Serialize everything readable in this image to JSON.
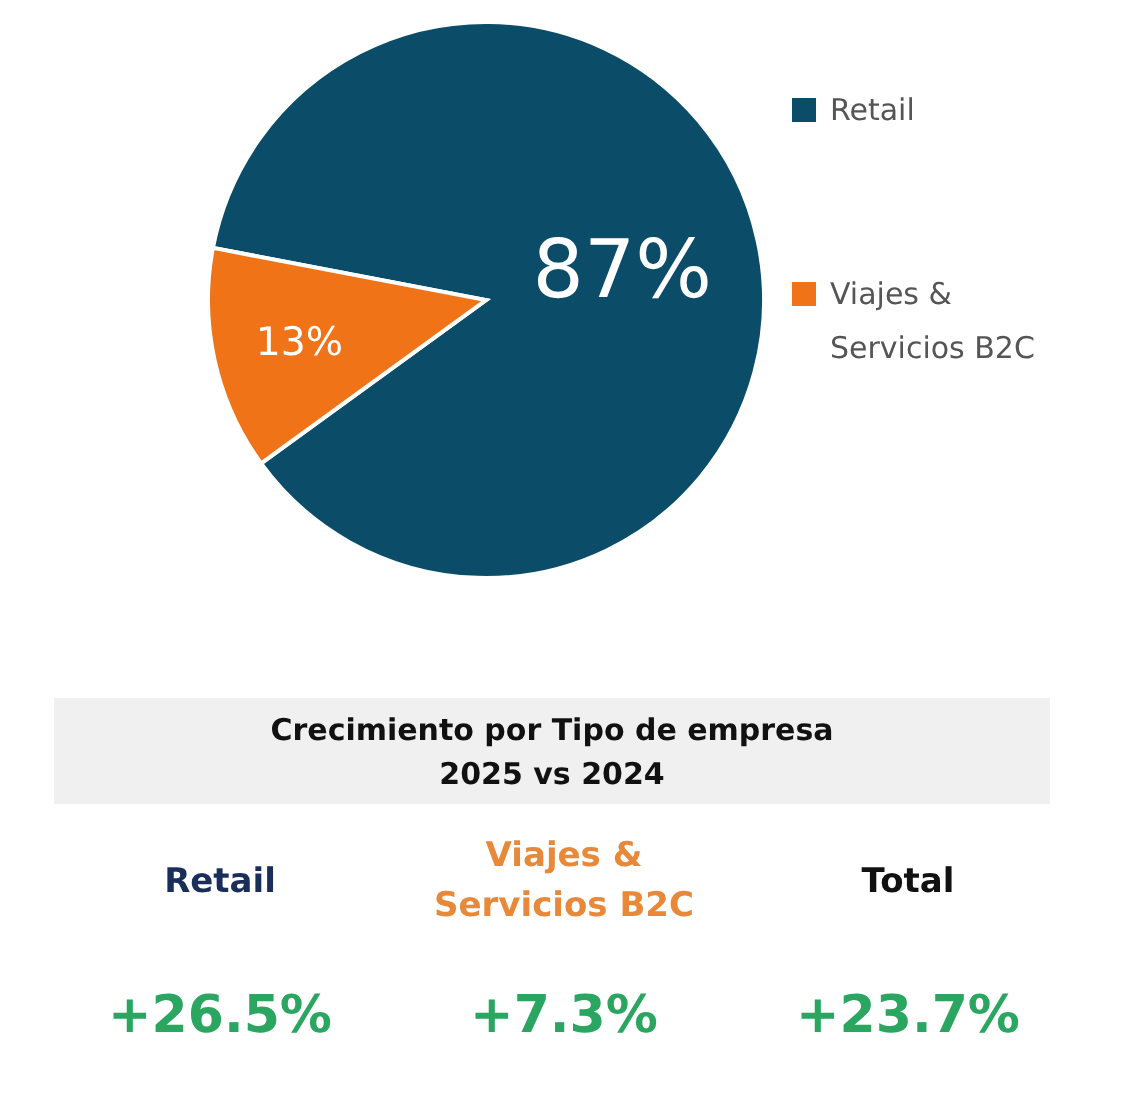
{
  "chart_data": [
    {
      "type": "pie",
      "categories": [
        "Retail",
        "Viajes & Servicios B2C"
      ],
      "values": [
        87,
        13
      ],
      "colors": [
        "#0b4d69",
        "#f07318"
      ],
      "value_labels": [
        "87%",
        "13%"
      ],
      "legend": "right"
    },
    {
      "type": "other",
      "title": "Crecimiento por Tipo de empresa",
      "subtitle": "2025 vs 2024",
      "categories": [
        "Retail",
        "Viajes & Servicios B2C",
        "Total"
      ],
      "value_labels": [
        "+26.5%",
        "+7.3%",
        "+23.7%"
      ],
      "colors": [
        "#1a2e5a",
        "#e8893a",
        "#111111"
      ],
      "color": "#2aa661"
    }
  ]
}
